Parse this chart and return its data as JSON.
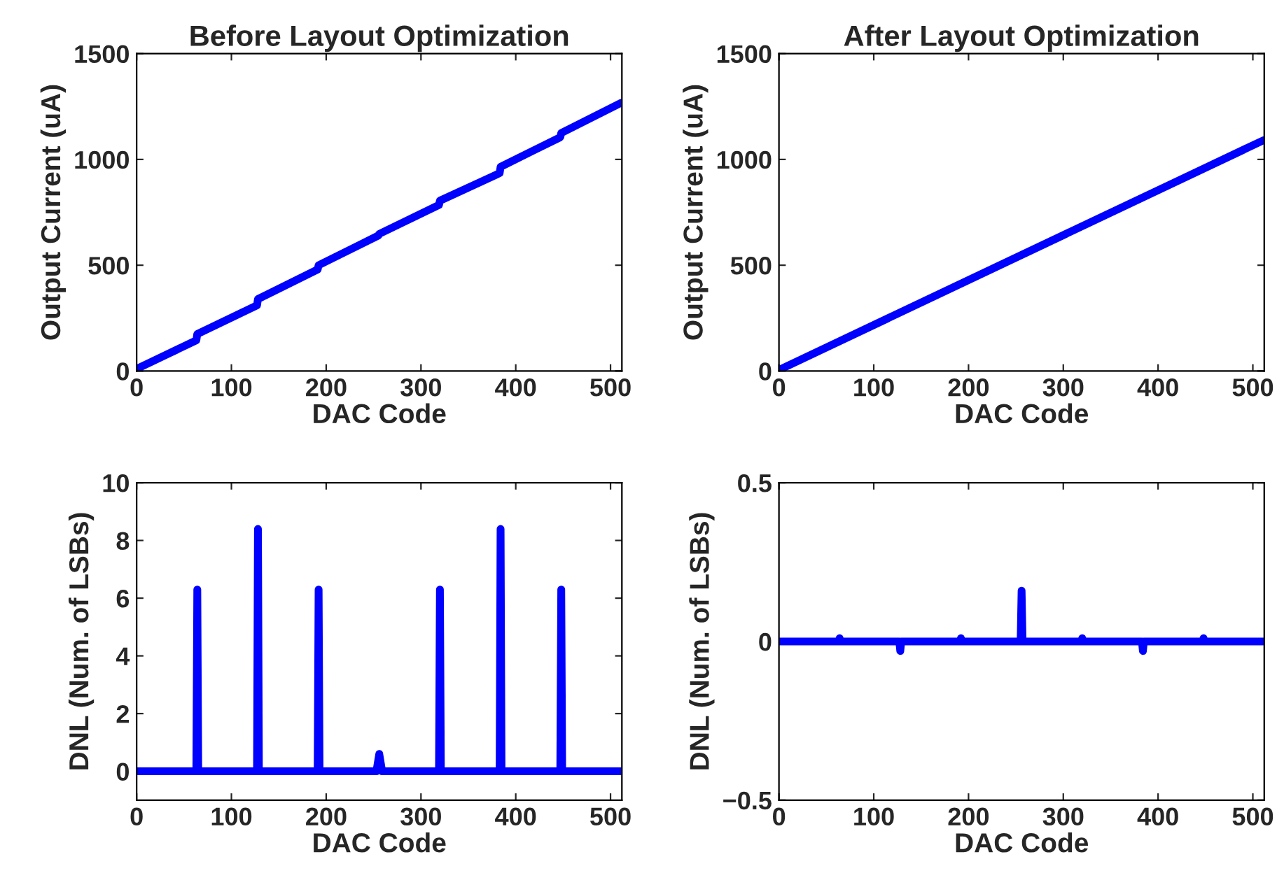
{
  "chart_data": [
    {
      "type": "line",
      "title": "Before Layout Optimization",
      "xlabel": "DAC Code",
      "ylabel": "Output Current (uA)",
      "xlim": [
        0,
        512
      ],
      "xticks": [
        0,
        100,
        200,
        300,
        400,
        500
      ],
      "ylim": [
        0,
        1500
      ],
      "yticks": [
        0,
        500,
        1000,
        1500
      ],
      "grid": false,
      "legend": false,
      "series": [
        {
          "color": "#0000ff",
          "x": [
            0,
            63,
            64,
            127,
            128,
            191,
            192,
            255,
            256,
            319,
            320,
            383,
            384,
            447,
            448,
            511
          ],
          "values": [
            10,
            145,
            175,
            310,
            340,
            480,
            500,
            640,
            648,
            785,
            805,
            935,
            965,
            1105,
            1125,
            1267
          ]
        }
      ]
    },
    {
      "type": "line",
      "title": "After Layout Optimization",
      "xlabel": "DAC Code",
      "ylabel": "Output Current (uA)",
      "xlim": [
        0,
        512
      ],
      "xticks": [
        0,
        100,
        200,
        300,
        400,
        500
      ],
      "ylim": [
        0,
        1500
      ],
      "yticks": [
        0,
        500,
        1000,
        1500
      ],
      "grid": false,
      "legend": false,
      "series": [
        {
          "color": "#0000ff",
          "x": [
            0,
            511
          ],
          "values": [
            5,
            1090
          ]
        }
      ]
    },
    {
      "type": "line",
      "xlabel": "DAC Code",
      "ylabel": "DNL (Num. of LSBs)",
      "xlim": [
        0,
        512
      ],
      "xticks": [
        0,
        100,
        200,
        300,
        400,
        500
      ],
      "ylim": [
        -1,
        10
      ],
      "yticks": [
        0,
        2,
        4,
        6,
        8,
        10
      ],
      "grid": false,
      "legend": false,
      "series": [
        {
          "color": "#0000ff",
          "x": [
            0,
            63,
            64,
            65,
            127,
            128,
            129,
            191,
            192,
            193,
            253,
            256,
            259,
            319,
            320,
            321,
            383,
            384,
            385,
            447,
            448,
            449,
            511
          ],
          "values": [
            0,
            0,
            6.3,
            0,
            0,
            8.4,
            0,
            0,
            6.3,
            0,
            0,
            0.6,
            0,
            0,
            6.3,
            0,
            0,
            8.4,
            0,
            0,
            6.3,
            0,
            0
          ]
        }
      ]
    },
    {
      "type": "line",
      "xlabel": "DAC Code",
      "ylabel": "DNL (Num. of LSBs)",
      "xlim": [
        0,
        512
      ],
      "xticks": [
        0,
        100,
        200,
        300,
        400,
        500
      ],
      "ylim": [
        -0.5,
        0.5
      ],
      "yticks": [
        {
          "value": -0.5,
          "label": "−0.5"
        },
        0,
        0.5
      ],
      "grid": false,
      "legend": false,
      "series": [
        {
          "color": "#0000ff",
          "x": [
            0,
            63,
            64,
            65,
            127,
            128,
            129,
            191,
            192,
            193,
            255,
            256,
            257,
            319,
            320,
            321,
            383,
            384,
            385,
            447,
            448,
            449,
            511
          ],
          "values": [
            0,
            0,
            0.01,
            0,
            0,
            -0.03,
            0,
            0,
            0.01,
            0,
            0,
            0.16,
            0,
            0,
            0.01,
            0,
            0,
            -0.03,
            0,
            0,
            0.01,
            0,
            0
          ]
        }
      ]
    }
  ]
}
